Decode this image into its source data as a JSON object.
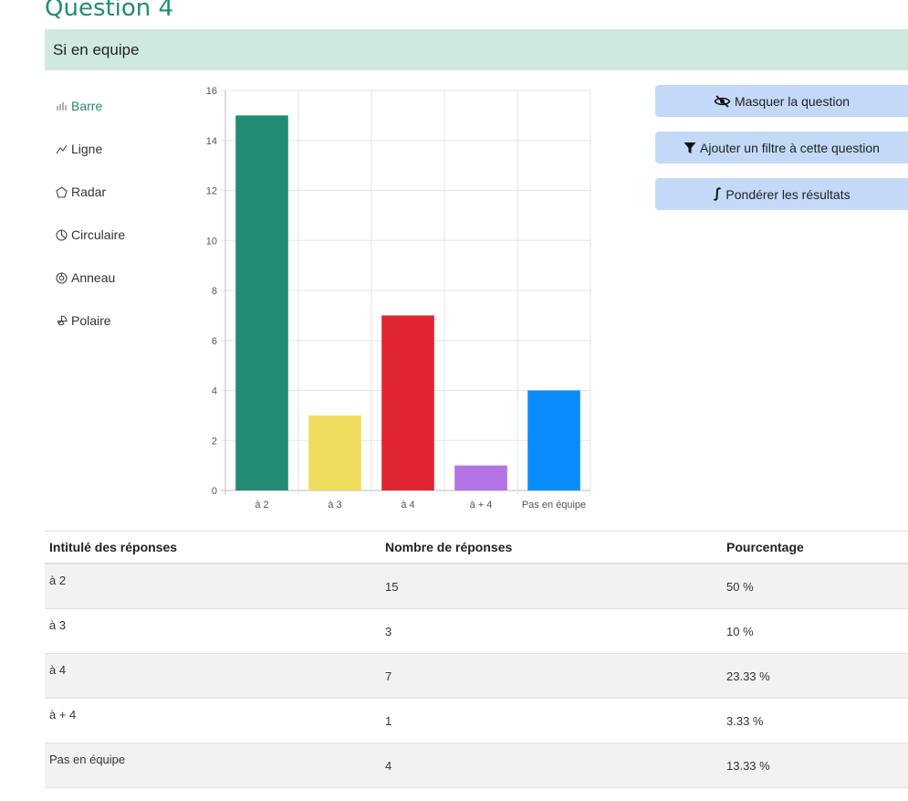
{
  "question": {
    "title": "Question 4",
    "subtitle": "Si en equipe"
  },
  "chart_types": [
    {
      "label": "Barre",
      "icon": "bar-chart-icon",
      "active": true
    },
    {
      "label": "Ligne",
      "icon": "line-chart-icon",
      "active": false
    },
    {
      "label": "Radar",
      "icon": "radar-chart-icon",
      "active": false
    },
    {
      "label": "Circulaire",
      "icon": "pie-chart-icon",
      "active": false
    },
    {
      "label": "Anneau",
      "icon": "doughnut-chart-icon",
      "active": false
    },
    {
      "label": "Polaire",
      "icon": "polar-chart-icon",
      "active": false
    }
  ],
  "actions": [
    {
      "label": "Masquer la question",
      "icon": "eye-slash-icon"
    },
    {
      "label": "Ajouter un filtre à cette question",
      "icon": "filter-icon"
    },
    {
      "label": "Pondérer les résultats",
      "icon": "integral-icon"
    }
  ],
  "table": {
    "headers": [
      "Intitulé des réponses",
      "Nombre de réponses",
      "Pourcentage"
    ],
    "rows": [
      [
        "à 2",
        "15",
        "50 %"
      ],
      [
        "à 3",
        "3",
        "10 %"
      ],
      [
        "à 4",
        "7",
        "23.33 %"
      ],
      [
        "à + 4",
        "1",
        "3.33 %"
      ],
      [
        "Pas en équipe",
        "4",
        "13.33 %"
      ]
    ]
  },
  "colors": {
    "accent": "#1f8f6a",
    "band": "#d0e9df",
    "button": "#c3d9f7"
  },
  "chart_data": {
    "type": "bar",
    "categories": [
      "à 2",
      "à 3",
      "à 4",
      "à + 4",
      "Pas en équipe"
    ],
    "values": [
      15,
      3,
      7,
      1,
      4
    ],
    "colors": [
      "#228c74",
      "#efdc5f",
      "#e02633",
      "#b373e4",
      "#0a8cfb"
    ],
    "ylim": [
      0,
      16
    ],
    "yticks": [
      0,
      2,
      4,
      6,
      8,
      10,
      12,
      14,
      16
    ],
    "grid": true,
    "title": "",
    "xlabel": "",
    "ylabel": ""
  }
}
